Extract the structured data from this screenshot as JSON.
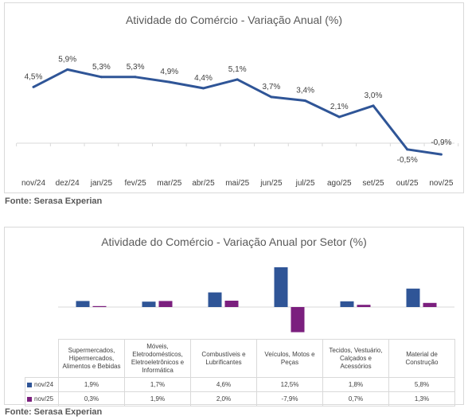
{
  "chart_data": [
    {
      "type": "line",
      "title": "Atividade do Comércio - Variação Anual (%)",
      "categories": [
        "nov/24",
        "dez/24",
        "jan/25",
        "fev/25",
        "mar/25",
        "abr/25",
        "mai/25",
        "jun/25",
        "jul/25",
        "ago/25",
        "set/25",
        "out/25",
        "nov/25"
      ],
      "values": [
        4.5,
        5.9,
        5.3,
        5.3,
        4.9,
        4.4,
        5.1,
        3.7,
        3.4,
        2.1,
        3.0,
        -0.5,
        -0.9
      ],
      "labels": [
        "4,5%",
        "5,9%",
        "5,3%",
        "5,3%",
        "4,9%",
        "4,4%",
        "5,1%",
        "3,7%",
        "3,4%",
        "2,1%",
        "3,0%",
        "-0,5%",
        "-0,9%"
      ],
      "color": "#2f5597",
      "grid": false
    },
    {
      "type": "bar",
      "title": "Atividade do Comércio - Variação Anual por Setor (%)",
      "categories": [
        "Supermercados, Hipermercados, Alimentos e Bebidas",
        "Móveis, Eletrodomésticos, Eletroeletrônicos e Informática",
        "Combustíveis e Lubrificantes",
        "Veículos, Motos e Peças",
        "Tecidos, Vestuário, Calçados e Acessórios",
        "Material de Construção"
      ],
      "series": [
        {
          "name": "nov/24",
          "color": "#2f5597",
          "values": [
            1.9,
            1.7,
            4.6,
            12.5,
            1.8,
            5.8
          ],
          "labels": [
            "1,9%",
            "1,7%",
            "4,6%",
            "12,5%",
            "1,8%",
            "5,8%"
          ]
        },
        {
          "name": "nov/25",
          "color": "#7b1f7e",
          "values": [
            0.3,
            1.9,
            2.0,
            -7.9,
            0.7,
            1.3
          ],
          "labels": [
            "0,3%",
            "1,9%",
            "2,0%",
            "-7,9%",
            "0,7%",
            "1,3%"
          ]
        }
      ],
      "legend": "table"
    }
  ],
  "sources": [
    "Fonte: Serasa Experian",
    "Fonte: Serasa Experian"
  ]
}
